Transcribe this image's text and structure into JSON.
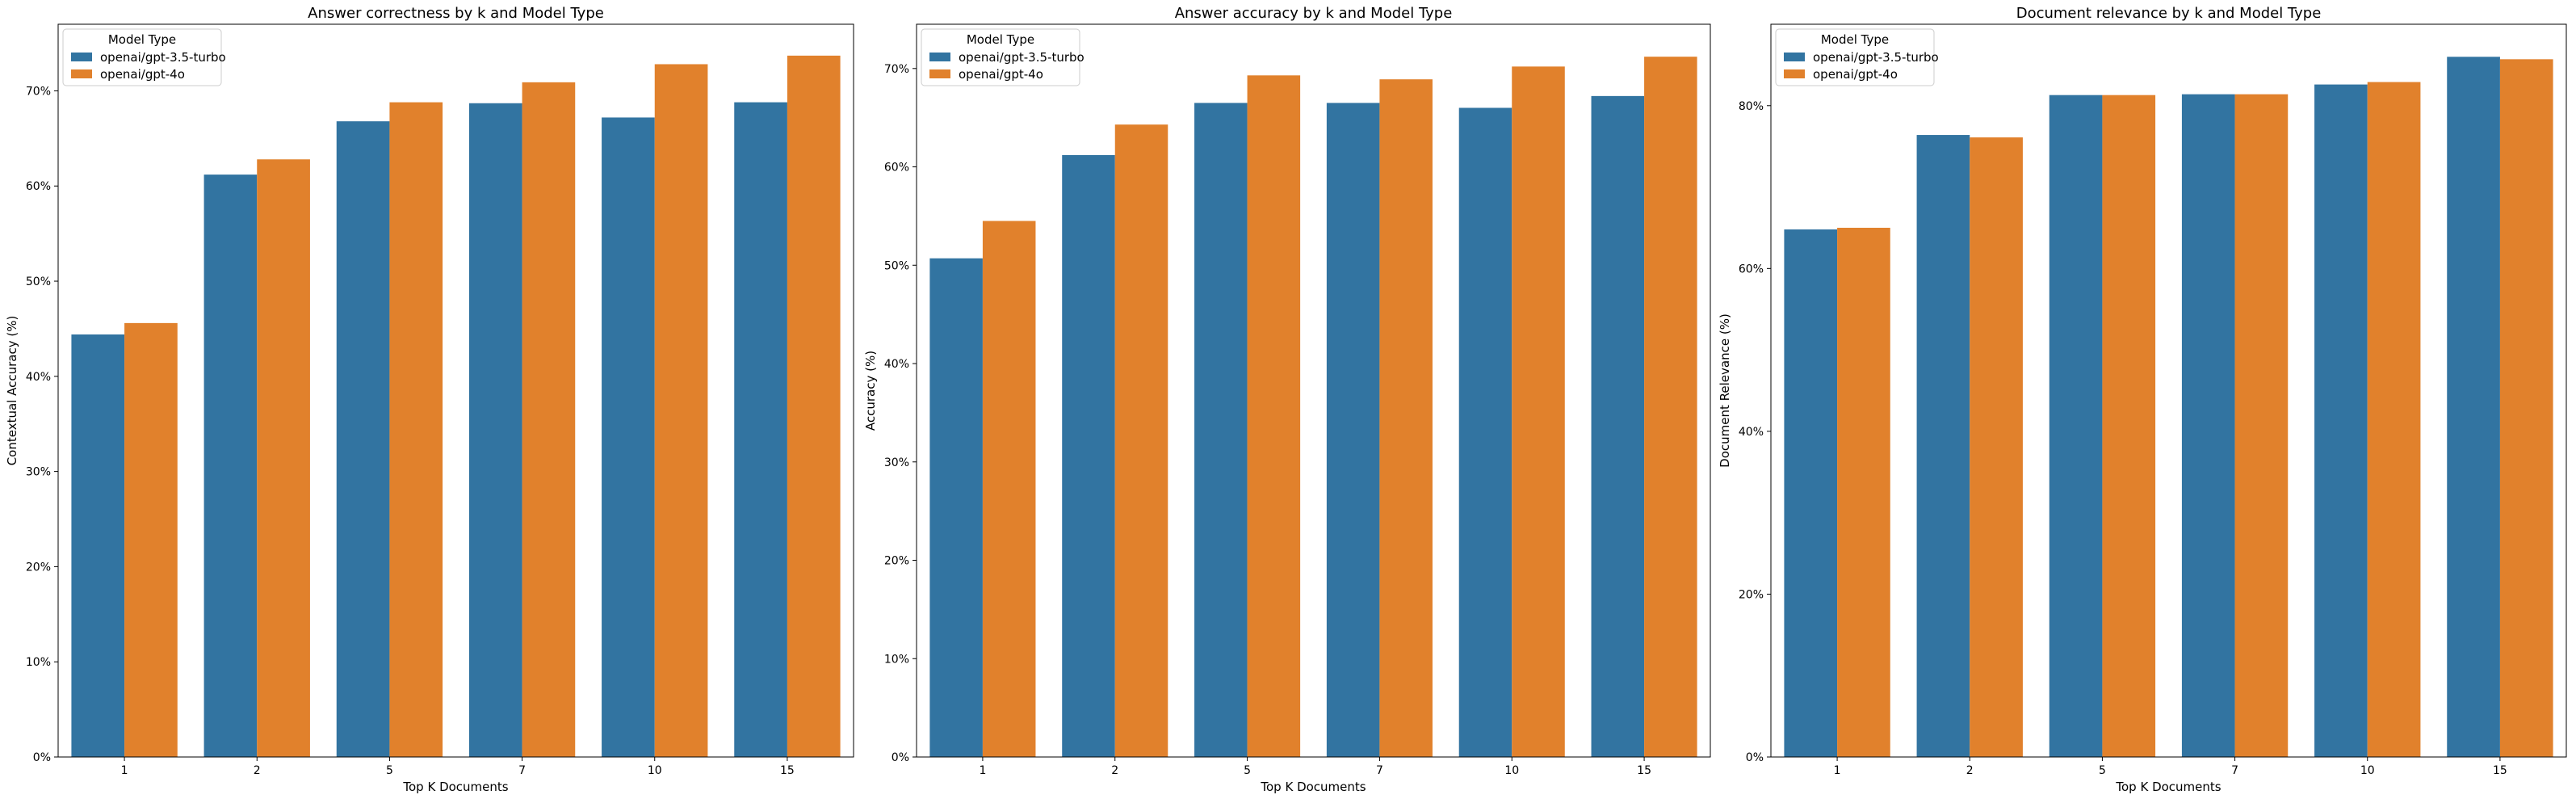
{
  "colors": {
    "series_a": "#3274a1",
    "series_b": "#e1812c"
  },
  "chart_data": [
    {
      "type": "bar",
      "title": "Answer correctness by k and Model Type",
      "xlabel": "Top K Documents",
      "ylabel": "Contextual Accuracy (%)",
      "categories": [
        "1",
        "2",
        "5",
        "7",
        "10",
        "15"
      ],
      "ylim": [
        0,
        77
      ],
      "yticks": [
        0,
        10,
        20,
        30,
        40,
        50,
        60,
        70
      ],
      "ytick_labels": [
        "0%",
        "10%",
        "20%",
        "30%",
        "40%",
        "50%",
        "60%",
        "70%"
      ],
      "legend_title": "Model Type",
      "legend_position": "top-left",
      "grid": false,
      "series": [
        {
          "name": "openai/gpt-3.5-turbo",
          "values": [
            44.4,
            61.2,
            66.8,
            68.7,
            67.2,
            68.8
          ]
        },
        {
          "name": "openai/gpt-4o",
          "values": [
            45.6,
            62.8,
            68.8,
            70.9,
            72.8,
            73.7
          ]
        }
      ]
    },
    {
      "type": "bar",
      "title": "Answer accuracy by k and Model Type",
      "xlabel": "Top K Documents",
      "ylabel": "Accuracy (%)",
      "categories": [
        "1",
        "2",
        "5",
        "7",
        "10",
        "15"
      ],
      "ylim": [
        0,
        74.5
      ],
      "yticks": [
        0,
        10,
        20,
        30,
        40,
        50,
        60,
        70
      ],
      "ytick_labels": [
        "0%",
        "10%",
        "20%",
        "30%",
        "40%",
        "50%",
        "60%",
        "70%"
      ],
      "legend_title": "Model Type",
      "legend_position": "top-left",
      "grid": false,
      "series": [
        {
          "name": "openai/gpt-3.5-turbo",
          "values": [
            50.7,
            61.2,
            66.5,
            66.5,
            66.0,
            67.2
          ]
        },
        {
          "name": "openai/gpt-4o",
          "values": [
            54.5,
            64.3,
            69.3,
            68.9,
            70.2,
            71.2
          ]
        }
      ]
    },
    {
      "type": "bar",
      "title": "Document relevance by k and Model Type",
      "xlabel": "Top K Documents",
      "ylabel": "Document Relevance (%)",
      "categories": [
        "1",
        "2",
        "5",
        "7",
        "10",
        "15"
      ],
      "ylim": [
        0,
        90
      ],
      "yticks": [
        0,
        20,
        40,
        60,
        80
      ],
      "ytick_labels": [
        "0%",
        "20%",
        "40%",
        "60%",
        "80%"
      ],
      "legend_title": "Model Type",
      "legend_position": "top-left",
      "grid": false,
      "series": [
        {
          "name": "openai/gpt-3.5-turbo",
          "values": [
            64.8,
            76.4,
            81.3,
            81.4,
            82.6,
            86.0
          ]
        },
        {
          "name": "openai/gpt-4o",
          "values": [
            65.0,
            76.1,
            81.3,
            81.4,
            82.9,
            85.7
          ]
        }
      ]
    }
  ]
}
